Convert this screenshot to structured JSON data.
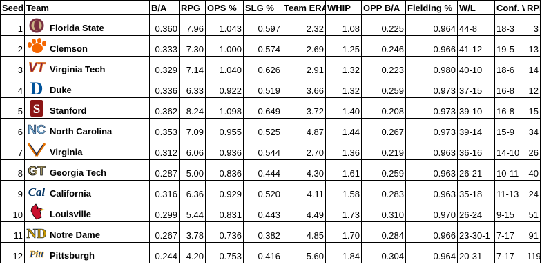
{
  "headers": [
    "Seed",
    "Team",
    "B/A",
    "RPG",
    "OPS %",
    "SLG %",
    "Team ERA",
    "WHIP",
    "OPP B/A",
    "Fielding %",
    "W/L",
    "Conf. W/L",
    "RPI"
  ],
  "rows": [
    {
      "seed": "1",
      "team": "Florida State",
      "logo": "seminole-head-logo",
      "ba": "0.360",
      "rpg": "7.96",
      "ops": "1.043",
      "slg": "0.597",
      "era": "2.32",
      "whip": "1.08",
      "oppba": "0.225",
      "fielding": "0.964",
      "wl": "44-8",
      "conf": "18-3",
      "rpi": "3"
    },
    {
      "seed": "2",
      "team": "Clemson",
      "logo": "tiger-paw-logo",
      "ba": "0.333",
      "rpg": "7.30",
      "ops": "1.000",
      "slg": "0.574",
      "era": "2.69",
      "whip": "1.25",
      "oppba": "0.246",
      "fielding": "0.966",
      "wl": "41-12",
      "conf": "19-5",
      "rpi": "13"
    },
    {
      "seed": "3",
      "team": "Virginia Tech",
      "logo": "vt-logo",
      "ba": "0.329",
      "rpg": "7.14",
      "ops": "1.040",
      "slg": "0.626",
      "era": "2.91",
      "whip": "1.32",
      "oppba": "0.223",
      "fielding": "0.980",
      "wl": "40-10",
      "conf": "18-6",
      "rpi": "14"
    },
    {
      "seed": "4",
      "team": "Duke",
      "logo": "duke-d-logo",
      "ba": "0.336",
      "rpg": "6.33",
      "ops": "0.922",
      "slg": "0.519",
      "era": "3.66",
      "whip": "1.32",
      "oppba": "0.259",
      "fielding": "0.973",
      "wl": "37-15",
      "conf": "16-8",
      "rpi": "12"
    },
    {
      "seed": "5",
      "team": "Stanford",
      "logo": "stanford-s-logo",
      "ba": "0.362",
      "rpg": "8.24",
      "ops": "1.098",
      "slg": "0.649",
      "era": "3.72",
      "whip": "1.40",
      "oppba": "0.208",
      "fielding": "0.973",
      "wl": "39-10",
      "conf": "16-8",
      "rpi": "15"
    },
    {
      "seed": "6",
      "team": "North Carolina",
      "logo": "nc-logo",
      "ba": "0.353",
      "rpg": "7.09",
      "ops": "0.955",
      "slg": "0.525",
      "era": "4.87",
      "whip": "1.44",
      "oppba": "0.267",
      "fielding": "0.973",
      "wl": "39-14",
      "conf": "15-9",
      "rpi": "34"
    },
    {
      "seed": "7",
      "team": "Virginia",
      "logo": "virginia-sabres-logo",
      "ba": "0.312",
      "rpg": "6.06",
      "ops": "0.936",
      "slg": "0.544",
      "era": "2.70",
      "whip": "1.36",
      "oppba": "0.219",
      "fielding": "0.963",
      "wl": "36-16",
      "conf": "14-10",
      "rpi": "26"
    },
    {
      "seed": "8",
      "team": "Georgia Tech",
      "logo": "gt-logo",
      "ba": "0.287",
      "rpg": "5.00",
      "ops": "0.836",
      "slg": "0.444",
      "era": "4.30",
      "whip": "1.61",
      "oppba": "0.259",
      "fielding": "0.963",
      "wl": "26-21",
      "conf": "10-11",
      "rpi": "40"
    },
    {
      "seed": "9",
      "team": "California",
      "logo": "cal-logo",
      "ba": "0.316",
      "rpg": "6.36",
      "ops": "0.929",
      "slg": "0.520",
      "era": "4.11",
      "whip": "1.58",
      "oppba": "0.283",
      "fielding": "0.963",
      "wl": "35-18",
      "conf": "11-13",
      "rpi": "24"
    },
    {
      "seed": "10",
      "team": "Louisville",
      "logo": "cardinal-bird-logo",
      "ba": "0.299",
      "rpg": "5.44",
      "ops": "0.831",
      "slg": "0.443",
      "era": "4.49",
      "whip": "1.73",
      "oppba": "0.310",
      "fielding": "0.970",
      "wl": "26-24",
      "conf": "9-15",
      "rpi": "51"
    },
    {
      "seed": "11",
      "team": "Notre Dame",
      "logo": "nd-logo",
      "ba": "0.267",
      "rpg": "3.78",
      "ops": "0.736",
      "slg": "0.382",
      "era": "4.85",
      "whip": "1.70",
      "oppba": "0.284",
      "fielding": "0.966",
      "wl": "23-30-1",
      "conf": "7-17",
      "rpi": "91"
    },
    {
      "seed": "12",
      "team": "Pittsburgh",
      "logo": "pitt-logo",
      "ba": "0.244",
      "rpg": "4.20",
      "ops": "0.753",
      "slg": "0.416",
      "era": "5.60",
      "whip": "1.84",
      "oppba": "0.304",
      "fielding": "0.964",
      "wl": "20-31",
      "conf": "7-17",
      "rpi": "119"
    }
  ],
  "logo_text": {
    "vt-logo": "VT",
    "duke-d-logo": "D",
    "stanford-s-logo": "S",
    "nc-logo": "NC",
    "gt-logo": "GT",
    "cal-logo": "Cal",
    "nd-logo": "ND",
    "pitt-logo": "Pitt"
  },
  "colors": {
    "florida_state": "#782F40",
    "clemson": "#F56600",
    "virginia_tech": "#861F41",
    "duke": "#00539B",
    "stanford": "#8C1515",
    "north_carolina": "#7BAFD4",
    "virginia_orange": "#E57200",
    "virginia_navy": "#232D4B",
    "georgia_tech": "#B3A369",
    "california": "#003262",
    "louisville": "#C8102E",
    "notre_dame": "#C99700",
    "pittsburgh": "#003594"
  }
}
